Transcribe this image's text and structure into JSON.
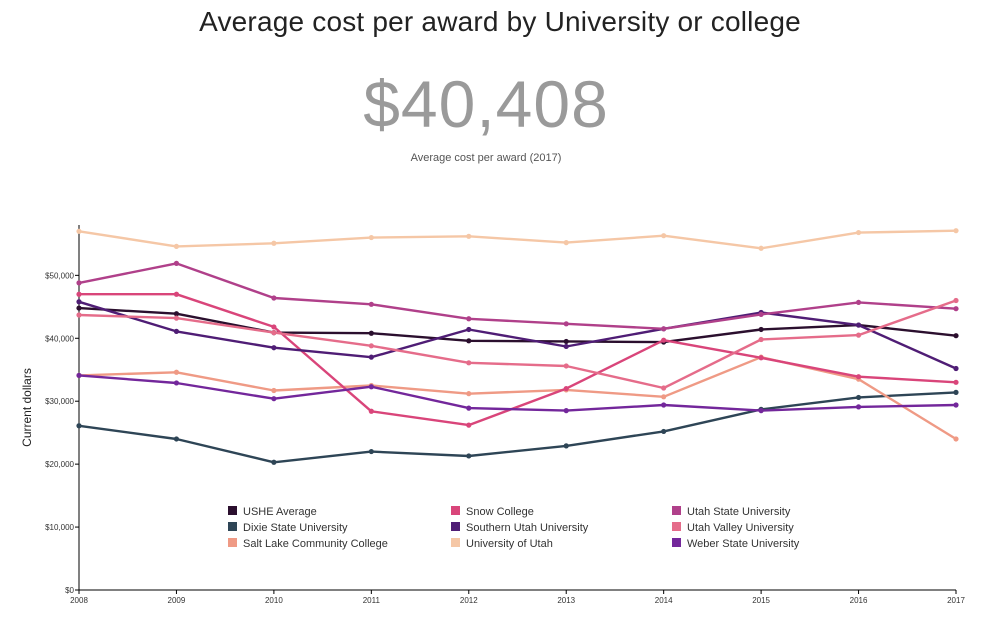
{
  "header": {
    "title": "Average cost per award by University or college",
    "headline_value": "$40,408",
    "headline_caption": "Average cost per award (2017)"
  },
  "chart_data": {
    "type": "line",
    "x": [
      "2008",
      "2009",
      "2010",
      "2011",
      "2012",
      "2013",
      "2014",
      "2015",
      "2016",
      "2017"
    ],
    "xlabel": "",
    "ylabel": "Current dollars",
    "ylim": [
      0,
      58000
    ],
    "yticks": [
      0,
      10000,
      20000,
      30000,
      40000,
      50000
    ],
    "ytick_labels": [
      "$0",
      "$10,000",
      "$20,000",
      "$30,000",
      "$40,000",
      "$50,000"
    ],
    "legend_position": "bottom-center",
    "series": [
      {
        "name": "USHE Average",
        "color": "#2b0f2e",
        "values": [
          44800,
          43900,
          40900,
          40800,
          39600,
          39500,
          39400,
          41400,
          42100,
          40408
        ]
      },
      {
        "name": "Dixie State University",
        "color": "#2e4556",
        "values": [
          26100,
          24000,
          20300,
          22000,
          21300,
          22900,
          25200,
          28700,
          30600,
          31400
        ]
      },
      {
        "name": "Salt Lake Community College",
        "color": "#ef9a85",
        "values": [
          34100,
          34600,
          31700,
          32500,
          31200,
          31800,
          30700,
          37000,
          33500,
          24000
        ]
      },
      {
        "name": "Snow College",
        "color": "#d9457a",
        "values": [
          47000,
          47000,
          41800,
          28400,
          26200,
          32000,
          39700,
          36900,
          33900,
          33000
        ]
      },
      {
        "name": "Southern Utah University",
        "color": "#4f1d75",
        "values": [
          45800,
          41100,
          38500,
          37000,
          41400,
          38700,
          41500,
          44100,
          42100,
          35200
        ]
      },
      {
        "name": "University of Utah",
        "color": "#f5c7a6",
        "values": [
          57000,
          54600,
          55100,
          56000,
          56200,
          55200,
          56300,
          54300,
          56800,
          57100
        ]
      },
      {
        "name": "Utah State University",
        "color": "#b0408a",
        "values": [
          48800,
          51900,
          46400,
          45400,
          43100,
          42300,
          41500,
          43800,
          45700,
          44700
        ]
      },
      {
        "name": "Utah Valley University",
        "color": "#e56c8a",
        "values": [
          43700,
          43200,
          40900,
          38800,
          36100,
          35600,
          32100,
          39800,
          40500,
          46000
        ]
      },
      {
        "name": "Weber State University",
        "color": "#73279b",
        "values": [
          34100,
          32900,
          30400,
          32300,
          28900,
          28500,
          29400,
          28500,
          29100,
          29400
        ]
      }
    ]
  }
}
